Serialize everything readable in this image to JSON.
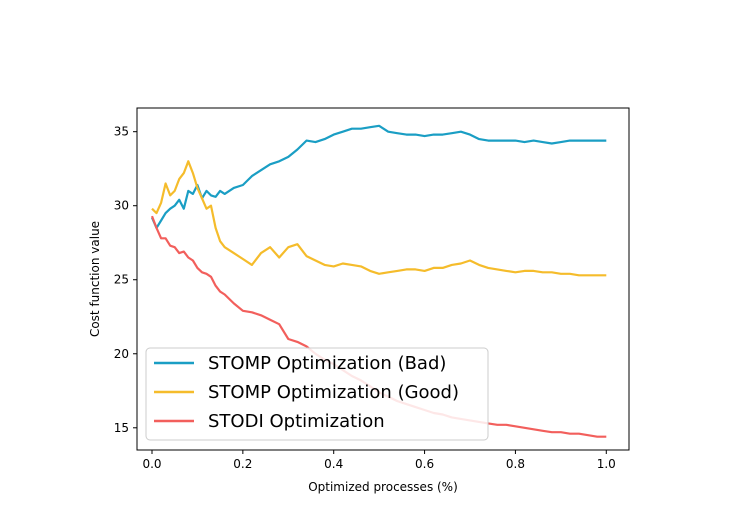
{
  "chart_data": {
    "type": "line",
    "title": "",
    "xlabel": "Optimized processes (%)",
    "ylabel": "Cost function value",
    "xlim": [
      -0.033,
      1.05
    ],
    "ylim": [
      13.5,
      36.6
    ],
    "xticks": [
      0.0,
      0.2,
      0.4,
      0.6,
      0.8,
      1.0
    ],
    "xtick_labels": [
      "0.0",
      "0.2",
      "0.4",
      "0.6",
      "0.8",
      "1.0"
    ],
    "yticks": [
      15,
      20,
      25,
      30,
      35
    ],
    "ytick_labels": [
      "15",
      "20",
      "25",
      "30",
      "35"
    ],
    "grid": false,
    "legend_position": "lower-left",
    "series": [
      {
        "name": "STOMP Optimization (Bad)",
        "color": "#1a9ec4",
        "x": [
          0.0,
          0.01,
          0.02,
          0.03,
          0.04,
          0.05,
          0.06,
          0.07,
          0.08,
          0.09,
          0.1,
          0.11,
          0.12,
          0.13,
          0.14,
          0.15,
          0.16,
          0.18,
          0.2,
          0.22,
          0.24,
          0.26,
          0.28,
          0.3,
          0.32,
          0.34,
          0.36,
          0.38,
          0.4,
          0.42,
          0.44,
          0.46,
          0.48,
          0.5,
          0.52,
          0.54,
          0.56,
          0.58,
          0.6,
          0.62,
          0.64,
          0.66,
          0.68,
          0.7,
          0.72,
          0.74,
          0.76,
          0.78,
          0.8,
          0.82,
          0.84,
          0.86,
          0.88,
          0.9,
          0.92,
          0.94,
          0.96,
          0.98,
          1.0
        ],
        "y": [
          29.2,
          28.5,
          29.0,
          29.5,
          29.8,
          30.0,
          30.4,
          29.8,
          31.0,
          30.8,
          31.4,
          30.5,
          31.0,
          30.7,
          30.6,
          31.0,
          30.8,
          31.2,
          31.4,
          32.0,
          32.4,
          32.8,
          33.0,
          33.3,
          33.8,
          34.4,
          34.3,
          34.5,
          34.8,
          35.0,
          35.2,
          35.2,
          35.3,
          35.4,
          35.0,
          34.9,
          34.8,
          34.8,
          34.7,
          34.8,
          34.8,
          34.9,
          35.0,
          34.8,
          34.5,
          34.4,
          34.4,
          34.4,
          34.4,
          34.3,
          34.4,
          34.3,
          34.2,
          34.3,
          34.4,
          34.4,
          34.4,
          34.4,
          34.4
        ]
      },
      {
        "name": "STOMP Optimization (Good)",
        "color": "#f5bc2b",
        "x": [
          0.0,
          0.01,
          0.02,
          0.03,
          0.04,
          0.05,
          0.06,
          0.07,
          0.08,
          0.09,
          0.1,
          0.11,
          0.12,
          0.13,
          0.14,
          0.15,
          0.16,
          0.18,
          0.2,
          0.22,
          0.24,
          0.26,
          0.28,
          0.3,
          0.32,
          0.34,
          0.36,
          0.38,
          0.4,
          0.42,
          0.44,
          0.46,
          0.48,
          0.5,
          0.52,
          0.54,
          0.56,
          0.58,
          0.6,
          0.62,
          0.64,
          0.66,
          0.68,
          0.7,
          0.72,
          0.74,
          0.76,
          0.78,
          0.8,
          0.82,
          0.84,
          0.86,
          0.88,
          0.9,
          0.92,
          0.94,
          0.96,
          0.98,
          1.0
        ],
        "y": [
          29.8,
          29.5,
          30.2,
          31.5,
          30.7,
          31.0,
          31.8,
          32.2,
          33.0,
          32.2,
          31.2,
          30.5,
          29.8,
          30.0,
          28.5,
          27.6,
          27.2,
          26.8,
          26.4,
          26.0,
          26.8,
          27.2,
          26.5,
          27.2,
          27.4,
          26.6,
          26.3,
          26.0,
          25.9,
          26.1,
          26.0,
          25.9,
          25.6,
          25.4,
          25.5,
          25.6,
          25.7,
          25.7,
          25.6,
          25.8,
          25.8,
          26.0,
          26.1,
          26.3,
          26.0,
          25.8,
          25.7,
          25.6,
          25.5,
          25.6,
          25.6,
          25.5,
          25.5,
          25.4,
          25.4,
          25.3,
          25.3,
          25.3,
          25.3
        ]
      },
      {
        "name": "STODI Optimization",
        "color": "#f25f5c",
        "x": [
          0.0,
          0.01,
          0.02,
          0.03,
          0.04,
          0.05,
          0.06,
          0.07,
          0.08,
          0.09,
          0.1,
          0.11,
          0.12,
          0.13,
          0.14,
          0.15,
          0.16,
          0.18,
          0.2,
          0.22,
          0.24,
          0.26,
          0.28,
          0.3,
          0.32,
          0.34,
          0.36,
          0.38,
          0.4,
          0.42,
          0.44,
          0.46,
          0.48,
          0.5,
          0.52,
          0.54,
          0.56,
          0.58,
          0.6,
          0.62,
          0.64,
          0.66,
          0.68,
          0.7,
          0.72,
          0.74,
          0.76,
          0.78,
          0.8,
          0.82,
          0.84,
          0.86,
          0.88,
          0.9,
          0.92,
          0.94,
          0.96,
          0.98,
          1.0
        ],
        "y": [
          29.3,
          28.5,
          27.8,
          27.8,
          27.3,
          27.2,
          26.8,
          26.9,
          26.5,
          26.3,
          25.8,
          25.5,
          25.4,
          25.2,
          24.6,
          24.2,
          24.0,
          23.4,
          22.9,
          22.8,
          22.6,
          22.3,
          22.0,
          21.0,
          20.8,
          20.5,
          20.0,
          19.6,
          19.3,
          18.9,
          18.5,
          18.2,
          17.8,
          17.4,
          17.1,
          16.8,
          16.6,
          16.4,
          16.2,
          16.0,
          15.9,
          15.7,
          15.6,
          15.5,
          15.4,
          15.3,
          15.2,
          15.2,
          15.1,
          15.0,
          14.9,
          14.8,
          14.7,
          14.7,
          14.6,
          14.6,
          14.5,
          14.4,
          14.4
        ]
      }
    ]
  }
}
